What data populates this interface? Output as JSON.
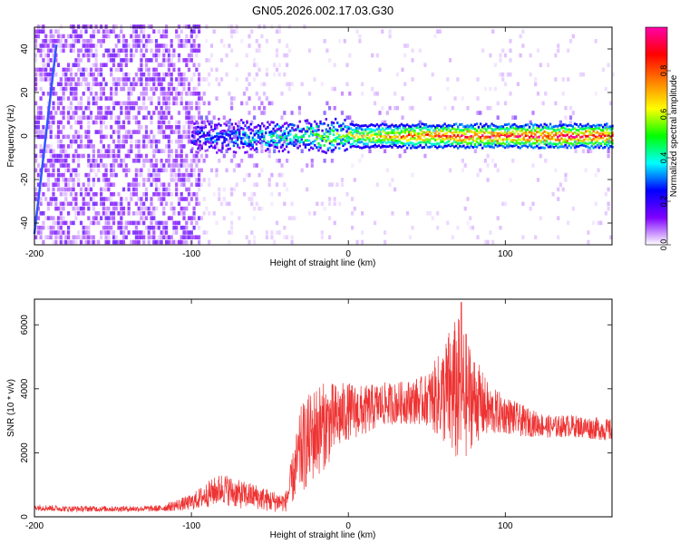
{
  "title": "GN05.2026.002.17.03.G30",
  "chart_data": [
    {
      "type": "heatmap",
      "name": "spectrogram",
      "xlabel": "Height of straight line (km)",
      "ylabel": "Frequency (Hz)",
      "xlim": [
        -200,
        168
      ],
      "ylim": [
        -50,
        50
      ],
      "xticks": [
        -200,
        -100,
        0,
        100
      ],
      "yticks": [
        -40,
        -20,
        0,
        20,
        40
      ],
      "colorbar": {
        "label": "Normalized spectral amplitude",
        "range": [
          0.0,
          1.0
        ],
        "ticks": [
          0.0,
          0.2,
          0.4,
          0.6,
          0.8
        ],
        "colors": [
          "#ffffff",
          "#7f00ff",
          "#0000ff",
          "#00ffff",
          "#00ff00",
          "#ffff00",
          "#ff8000",
          "#ff0000",
          "#ff00aa"
        ]
      },
      "features": [
        {
          "name": "noise floor",
          "x_range": [
            -200,
            -95
          ],
          "freq_range": [
            -50,
            50
          ],
          "level": 0.15
        },
        {
          "name": "sweep line",
          "x_start": -200,
          "x_end": -186,
          "freq_start": -45,
          "freq_end": 42
        },
        {
          "name": "carrier",
          "x_range": [
            -100,
            168
          ],
          "freq": 0,
          "level_start": 0.3,
          "level_end": 1.0
        }
      ]
    },
    {
      "type": "line",
      "name": "snr",
      "xlabel": "Height of straight line (km)",
      "ylabel": "SNR (10 * v/v)",
      "xlim": [
        -200,
        168
      ],
      "ylim": [
        0,
        6800
      ],
      "xticks": [
        -200,
        -100,
        0,
        100
      ],
      "yticks": [
        0,
        2000,
        4000,
        6000
      ],
      "color": "#ee3333",
      "envelope": {
        "x": [
          -200,
          -180,
          -160,
          -140,
          -120,
          -100,
          -90,
          -80,
          -70,
          -60,
          -50,
          -40,
          -30,
          -20,
          -10,
          0,
          10,
          20,
          30,
          40,
          50,
          60,
          65,
          70,
          75,
          80,
          90,
          100,
          110,
          120,
          130,
          140,
          150,
          160,
          168
        ],
        "mean": [
          300,
          250,
          250,
          250,
          260,
          450,
          700,
          900,
          700,
          650,
          500,
          450,
          2100,
          2700,
          3000,
          3300,
          3300,
          3500,
          3550,
          3600,
          3650,
          3800,
          3900,
          3900,
          3800,
          3700,
          3300,
          3200,
          3000,
          2900,
          2800,
          2850,
          2800,
          2750,
          2700
        ],
        "spread": [
          100,
          90,
          90,
          90,
          100,
          250,
          400,
          500,
          450,
          400,
          350,
          300,
          1400,
          1500,
          1200,
          900,
          800,
          700,
          650,
          700,
          800,
          1500,
          2100,
          2400,
          2000,
          1400,
          800,
          600,
          500,
          400,
          350,
          350,
          350,
          350,
          350
        ]
      },
      "peak": {
        "x": 72,
        "y": 6700
      }
    }
  ]
}
